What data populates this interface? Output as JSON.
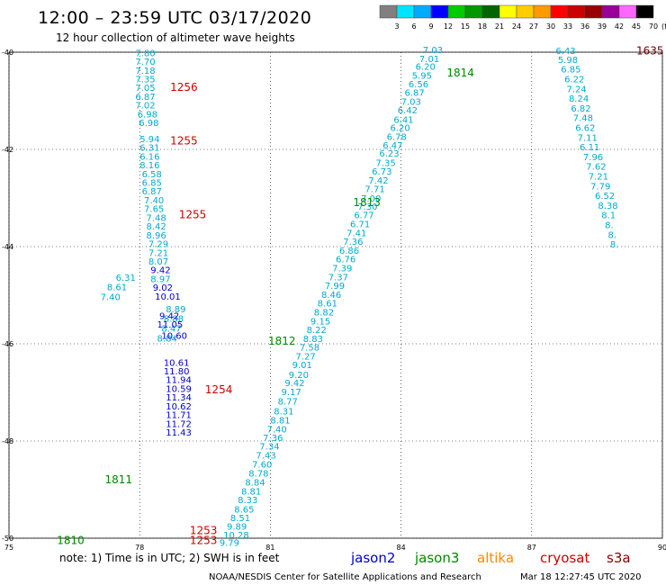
{
  "header": {
    "title": "12:00 – 23:59 UTC 03/17/2020",
    "subtitle": "12 hour collection of altimeter wave heights"
  },
  "colorbar": {
    "labels": [
      "3",
      "6",
      "9",
      "12",
      "15",
      "18",
      "21",
      "24",
      "27",
      "30",
      "33",
      "36",
      "39",
      "42",
      "45",
      "70",
      "(ft)"
    ],
    "colors": [
      "#808080",
      "#00e5ff",
      "#00aaff",
      "#0000ff",
      "#00cc00",
      "#009900",
      "#006600",
      "#ffff00",
      "#ffcc00",
      "#ff9900",
      "#ff0000",
      "#cc0000",
      "#990000",
      "#990099",
      "#ff66ff",
      "#000000"
    ]
  },
  "footer": {
    "note": "note:  1) Time is in UTC;  2) SWH is in feet",
    "credit": "NOAA/NESDIS Center for Satellite Applications and Research",
    "timestamp": "Mar 18 12:27:45 UTC 2020",
    "sources": [
      {
        "name": "jason2",
        "color": "#0000cc"
      },
      {
        "name": "jason3",
        "color": "#008800"
      },
      {
        "name": "altika",
        "color": "#ff8800"
      },
      {
        "name": "cryosat",
        "color": "#cc0000"
      },
      {
        "name": "s3a",
        "color": "#880000"
      }
    ]
  },
  "chart_data": {
    "type": "scatter",
    "title": "12:00 – 23:59 UTC 03/17/2020",
    "subtitle": "12 hour collection of altimeter wave heights",
    "xlim": [
      75,
      90
    ],
    "ylim": [
      -50,
      -40
    ],
    "x_ticks": [
      "75",
      "78",
      "81",
      "84",
      "87",
      "90"
    ],
    "y_ticks": [
      "-40",
      "-42",
      "-44",
      "-46",
      "-48",
      "-50"
    ],
    "grid": true,
    "series": [
      {
        "name": "jason3",
        "color": "#00aacc",
        "points": [
          {
            "x": 84.5,
            "y": -40.02,
            "v": "7.03"
          },
          {
            "x": 84.42,
            "y": -40.2,
            "v": "7.01"
          },
          {
            "x": 84.33,
            "y": -40.36,
            "v": "6.20"
          },
          {
            "x": 84.25,
            "y": -40.55,
            "v": "5.95"
          },
          {
            "x": 84.17,
            "y": -40.72,
            "v": "6.56"
          },
          {
            "x": 84.08,
            "y": -40.9,
            "v": "6.87"
          },
          {
            "x": 84.0,
            "y": -41.08,
            "v": "7.03"
          },
          {
            "x": 83.92,
            "y": -41.26,
            "v": "6.42"
          },
          {
            "x": 83.83,
            "y": -41.45,
            "v": "6.41"
          },
          {
            "x": 83.75,
            "y": -41.62,
            "v": "6.20"
          },
          {
            "x": 83.67,
            "y": -41.81,
            "v": "6.78"
          },
          {
            "x": 83.58,
            "y": -41.98,
            "v": "6.47"
          },
          {
            "x": 83.5,
            "y": -42.15,
            "v": "6.23"
          },
          {
            "x": 83.42,
            "y": -42.34,
            "v": "7.35"
          },
          {
            "x": 83.33,
            "y": -42.52,
            "v": "6.73"
          },
          {
            "x": 83.25,
            "y": -42.7,
            "v": "7.42"
          },
          {
            "x": 83.17,
            "y": -42.88,
            "v": "7.71"
          },
          {
            "x": 83.08,
            "y": -43.07,
            "v": "7.00"
          },
          {
            "x": 83.0,
            "y": -43.24,
            "v": "7.30"
          },
          {
            "x": 82.92,
            "y": -43.42,
            "v": "6.77"
          },
          {
            "x": 82.83,
            "y": -43.6,
            "v": "6.71"
          },
          {
            "x": 82.75,
            "y": -43.79,
            "v": "7.41"
          },
          {
            "x": 82.67,
            "y": -43.96,
            "v": "7.36"
          },
          {
            "x": 82.58,
            "y": -44.15,
            "v": "6.86"
          },
          {
            "x": 82.5,
            "y": -44.32,
            "v": "6.76"
          },
          {
            "x": 82.42,
            "y": -44.51,
            "v": "7.39"
          },
          {
            "x": 82.33,
            "y": -44.69,
            "v": "7.37"
          },
          {
            "x": 82.25,
            "y": -44.87,
            "v": "7.99"
          },
          {
            "x": 82.17,
            "y": -45.06,
            "v": "8.46"
          },
          {
            "x": 82.08,
            "y": -45.23,
            "v": "8.61"
          },
          {
            "x": 82.0,
            "y": -45.42,
            "v": "8.82"
          },
          {
            "x": 81.92,
            "y": -45.6,
            "v": "9.15"
          },
          {
            "x": 81.83,
            "y": -45.78,
            "v": "8.22"
          },
          {
            "x": 81.75,
            "y": -45.96,
            "v": "8.83"
          },
          {
            "x": 81.67,
            "y": -46.14,
            "v": "7.58"
          },
          {
            "x": 81.58,
            "y": -46.32,
            "v": "7.27"
          },
          {
            "x": 81.5,
            "y": -46.5,
            "v": "9.01"
          },
          {
            "x": 81.42,
            "y": -46.7,
            "v": "9.20"
          },
          {
            "x": 81.33,
            "y": -46.87,
            "v": "9.42"
          },
          {
            "x": 81.25,
            "y": -47.06,
            "v": "9.17"
          },
          {
            "x": 81.17,
            "y": -47.25,
            "v": "8.77"
          },
          {
            "x": 81.08,
            "y": -47.45,
            "v": "8.31"
          },
          {
            "x": 81.0,
            "y": -47.64,
            "v": "8.81"
          },
          {
            "x": 80.92,
            "y": -47.82,
            "v": "7.40"
          },
          {
            "x": 80.83,
            "y": -48.0,
            "v": "7.36"
          },
          {
            "x": 80.75,
            "y": -48.18,
            "v": "7.34"
          },
          {
            "x": 80.67,
            "y": -48.36,
            "v": "7.43"
          },
          {
            "x": 80.58,
            "y": -48.55,
            "v": "7.60"
          },
          {
            "x": 80.5,
            "y": -48.73,
            "v": "8.78"
          },
          {
            "x": 80.42,
            "y": -48.92,
            "v": "8.84"
          },
          {
            "x": 80.33,
            "y": -49.1,
            "v": "8.81"
          },
          {
            "x": 80.25,
            "y": -49.28,
            "v": "8.33"
          },
          {
            "x": 80.17,
            "y": -49.47,
            "v": "8.65"
          },
          {
            "x": 80.08,
            "y": -49.65,
            "v": "8.51"
          },
          {
            "x": 80.0,
            "y": -49.82,
            "v": "9.89"
          },
          {
            "x": 79.92,
            "y": -50.0,
            "v": "10.28"
          },
          {
            "x": 79.83,
            "y": -50.16,
            "v": "9.79"
          }
        ]
      },
      {
        "name": "cryosat-w",
        "color": "#00aacc",
        "points": [
          {
            "x": 77.9,
            "y": -40.08,
            "v": "7.80"
          },
          {
            "x": 77.9,
            "y": -40.26,
            "v": "7.70"
          },
          {
            "x": 77.9,
            "y": -40.44,
            "v": "7.18"
          },
          {
            "x": 77.9,
            "y": -40.62,
            "v": "7.35"
          },
          {
            "x": 77.9,
            "y": -40.8,
            "v": "7.05"
          },
          {
            "x": 77.9,
            "y": -40.98,
            "v": "6.87"
          },
          {
            "x": 77.9,
            "y": -41.16,
            "v": "7.02"
          },
          {
            "x": 77.95,
            "y": -41.34,
            "v": "6.98"
          },
          {
            "x": 77.98,
            "y": -41.52,
            "v": "6.98"
          },
          {
            "x": 78.0,
            "y": -41.85,
            "v": "5.94"
          },
          {
            "x": 78.0,
            "y": -42.03,
            "v": "6.31"
          },
          {
            "x": 78.0,
            "y": -42.21,
            "v": "6.16"
          },
          {
            "x": 78.0,
            "y": -42.39,
            "v": "8.16"
          },
          {
            "x": 78.05,
            "y": -42.57,
            "v": "6.58"
          },
          {
            "x": 78.05,
            "y": -42.75,
            "v": "6.85"
          },
          {
            "x": 78.05,
            "y": -42.93,
            "v": "6.87"
          },
          {
            "x": 78.1,
            "y": -43.11,
            "v": "7.40"
          },
          {
            "x": 78.1,
            "y": -43.29,
            "v": "7.65"
          },
          {
            "x": 78.15,
            "y": -43.47,
            "v": "7.48"
          },
          {
            "x": 78.15,
            "y": -43.65,
            "v": "8.42"
          },
          {
            "x": 78.15,
            "y": -43.83,
            "v": "8.96"
          },
          {
            "x": 78.2,
            "y": -44.01,
            "v": "7.29"
          },
          {
            "x": 78.2,
            "y": -44.19,
            "v": "7.21"
          },
          {
            "x": 78.2,
            "y": -44.37,
            "v": "8.07"
          },
          {
            "x": 78.25,
            "y": -44.73,
            "v": "8.97"
          },
          {
            "x": 78.6,
            "y": -45.35,
            "v": "8.89"
          },
          {
            "x": 78.55,
            "y": -45.55,
            "v": "8.88"
          },
          {
            "x": 78.5,
            "y": -45.75,
            "v": "8.47"
          },
          {
            "x": 78.4,
            "y": -45.95,
            "v": "8.84"
          },
          {
            "x": 77.45,
            "y": -44.7,
            "v": "6.31"
          },
          {
            "x": 77.25,
            "y": -44.9,
            "v": "8.61"
          },
          {
            "x": 77.1,
            "y": -45.1,
            "v": "7.40"
          }
        ]
      },
      {
        "name": "cryosat-w-dark",
        "color": "#0000cc",
        "points": [
          {
            "x": 78.25,
            "y": -44.55,
            "v": "9.42"
          },
          {
            "x": 78.3,
            "y": -44.91,
            "v": "9.02"
          },
          {
            "x": 78.35,
            "y": -45.09,
            "v": "10.01"
          },
          {
            "x": 78.45,
            "y": -45.49,
            "v": "9.42"
          },
          {
            "x": 78.4,
            "y": -45.67,
            "v": "11.05"
          },
          {
            "x": 78.5,
            "y": -45.9,
            "v": "10.60"
          },
          {
            "x": 78.55,
            "y": -46.45,
            "v": "10.61"
          },
          {
            "x": 78.55,
            "y": -46.63,
            "v": "11.80"
          },
          {
            "x": 78.6,
            "y": -46.81,
            "v": "11.94"
          },
          {
            "x": 78.6,
            "y": -46.99,
            "v": "10.59"
          },
          {
            "x": 78.6,
            "y": -47.17,
            "v": "11.34"
          },
          {
            "x": 78.6,
            "y": -47.35,
            "v": "10.62"
          },
          {
            "x": 78.6,
            "y": -47.53,
            "v": "11.71"
          },
          {
            "x": 78.6,
            "y": -47.71,
            "v": "11.72"
          },
          {
            "x": 78.6,
            "y": -47.89,
            "v": "11.43"
          }
        ]
      },
      {
        "name": "cryosat-e",
        "color": "#00aacc",
        "points": [
          {
            "x": 87.55,
            "y": -40.04,
            "v": "6.43"
          },
          {
            "x": 87.6,
            "y": -40.22,
            "v": "5.98"
          },
          {
            "x": 87.67,
            "y": -40.42,
            "v": "6.85"
          },
          {
            "x": 87.75,
            "y": -40.62,
            "v": "6.22"
          },
          {
            "x": 87.8,
            "y": -40.82,
            "v": "7.24"
          },
          {
            "x": 87.85,
            "y": -41.02,
            "v": "8.24"
          },
          {
            "x": 87.9,
            "y": -41.22,
            "v": "6.82"
          },
          {
            "x": 87.95,
            "y": -41.42,
            "v": "7.48"
          },
          {
            "x": 88.0,
            "y": -41.62,
            "v": "6.62"
          },
          {
            "x": 88.05,
            "y": -41.82,
            "v": "7.11"
          },
          {
            "x": 88.1,
            "y": -42.02,
            "v": "6.11"
          },
          {
            "x": 88.18,
            "y": -42.22,
            "v": "7.96"
          },
          {
            "x": 88.25,
            "y": -42.42,
            "v": "7.62"
          },
          {
            "x": 88.3,
            "y": -42.62,
            "v": "7.21"
          },
          {
            "x": 88.35,
            "y": -42.82,
            "v": "7.79"
          },
          {
            "x": 88.45,
            "y": -43.02,
            "v": "6.52"
          },
          {
            "x": 88.52,
            "y": -43.22,
            "v": "8.38"
          },
          {
            "x": 88.6,
            "y": -43.42,
            "v": "8.1"
          },
          {
            "x": 88.68,
            "y": -43.62,
            "v": "8."
          },
          {
            "x": 88.75,
            "y": -43.82,
            "v": "8."
          },
          {
            "x": 88.8,
            "y": -44.02,
            "v": "8."
          }
        ]
      }
    ],
    "times": [
      {
        "x": 78.7,
        "y": -40.8,
        "t": "1256",
        "color": "#cc0000"
      },
      {
        "x": 78.7,
        "y": -41.9,
        "t": "1255",
        "color": "#cc0000"
      },
      {
        "x": 78.9,
        "y": -43.42,
        "t": "1255",
        "color": "#cc0000"
      },
      {
        "x": 79.5,
        "y": -47.02,
        "t": "1254",
        "color": "#cc0000"
      },
      {
        "x": 79.15,
        "y": -49.92,
        "t": "1253",
        "color": "#cc0000"
      },
      {
        "x": 79.15,
        "y": -50.12,
        "t": "1253",
        "color": "#cc0000"
      },
      {
        "x": 89.4,
        "y": -40.05,
        "t": "1635",
        "color": "#660000"
      },
      {
        "x": 85.05,
        "y": -40.5,
        "t": "1814",
        "color": "#008800"
      },
      {
        "x": 82.9,
        "y": -43.17,
        "t": "1813",
        "color": "#008800"
      },
      {
        "x": 80.95,
        "y": -46.02,
        "t": "1812",
        "color": "#008800"
      },
      {
        "x": 77.2,
        "y": -48.87,
        "t": "1811",
        "color": "#008800"
      },
      {
        "x": 76.1,
        "y": -50.12,
        "t": "1810",
        "color": "#008800"
      }
    ]
  }
}
